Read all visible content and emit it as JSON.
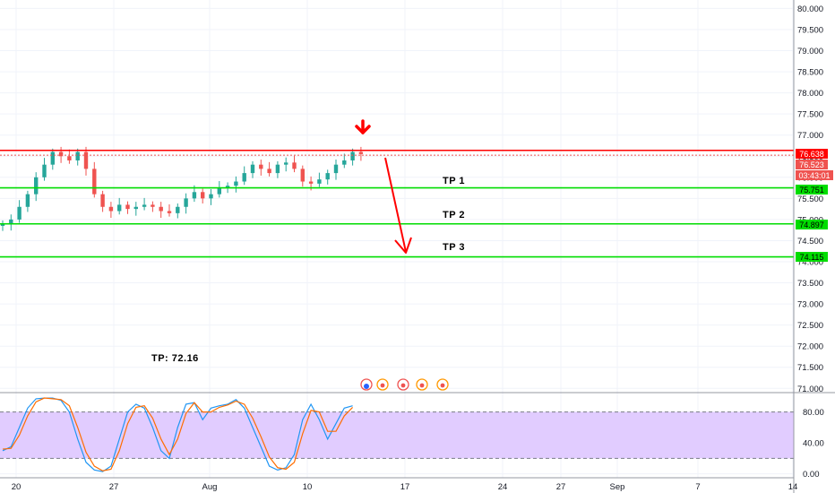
{
  "colors": {
    "up": "#26a69a",
    "down": "#ef5350",
    "resistance": "#ff0000",
    "support": "#00dd00",
    "stoch_k": "#2196f3",
    "stoch_d": "#ff6d00",
    "stoch_band": "#e1ccff",
    "grid": "#f0f3fa"
  },
  "annotations": {
    "tp1": "TP 1",
    "tp2": "TP 2",
    "tp3": "TP 3",
    "tp_note": "TP: 72.16"
  },
  "price_tags": {
    "resistance": "76.638",
    "last": "76.523",
    "countdown": "03:43:01",
    "tp1": "75.751",
    "tp2": "74.897",
    "tp3": "74.115"
  },
  "chart_data": [
    {
      "type": "candlestick",
      "title": "",
      "ylim": [
        70.9,
        80.2
      ],
      "y_ticks": [
        "80.000",
        "79.500",
        "79.000",
        "78.500",
        "78.000",
        "77.500",
        "77.000",
        "76.500",
        "76.000",
        "75.500",
        "75.000",
        "74.500",
        "74.000",
        "73.500",
        "73.000",
        "72.500",
        "72.000",
        "71.500",
        "71.000"
      ],
      "x_ticks": [
        "20",
        "27",
        "Aug",
        "10",
        "17",
        "24",
        "27",
        "Sep",
        "7",
        "14"
      ],
      "levels": [
        {
          "name": "resistance",
          "value": 76.638
        },
        {
          "name": "TP 1",
          "value": 75.751
        },
        {
          "name": "TP 2",
          "value": 74.897
        },
        {
          "name": "TP 3",
          "value": 74.115
        }
      ],
      "last_price": 76.523,
      "close_path": [
        74.9,
        75.0,
        75.3,
        75.6,
        76.0,
        76.3,
        76.6,
        76.5,
        76.4,
        76.6,
        76.2,
        75.6,
        75.3,
        75.2,
        75.35,
        75.25,
        75.3,
        75.35,
        75.3,
        75.2,
        75.15,
        75.3,
        75.5,
        75.65,
        75.5,
        75.6,
        75.75,
        75.8,
        75.9,
        76.1,
        76.3,
        76.2,
        76.1,
        76.3,
        76.35,
        76.2,
        75.9,
        75.85,
        75.95,
        76.1,
        76.3,
        76.4,
        76.6,
        76.55
      ]
    },
    {
      "type": "line",
      "title": "",
      "ylim": [
        -5,
        105
      ],
      "y_ticks": [
        "80.00",
        "40.00",
        "0.00"
      ],
      "band": [
        20,
        80
      ],
      "series": [
        {
          "values": [
            30,
            35,
            60,
            85,
            97,
            98,
            98,
            95,
            80,
            45,
            15,
            5,
            3,
            10,
            45,
            80,
            90,
            85,
            60,
            30,
            20,
            60,
            90,
            92,
            70,
            85,
            88,
            90,
            96,
            85,
            60,
            35,
            10,
            5,
            8,
            25,
            70,
            90,
            70,
            45,
            65,
            85,
            88
          ]
        },
        {
          "values": [
            32,
            33,
            50,
            75,
            93,
            98,
            97,
            96,
            88,
            60,
            28,
            10,
            4,
            6,
            30,
            65,
            86,
            88,
            72,
            45,
            25,
            45,
            78,
            92,
            80,
            80,
            86,
            89,
            94,
            90,
            72,
            48,
            22,
            8,
            6,
            15,
            52,
            82,
            80,
            55,
            55,
            75,
            86
          ]
        }
      ]
    }
  ]
}
